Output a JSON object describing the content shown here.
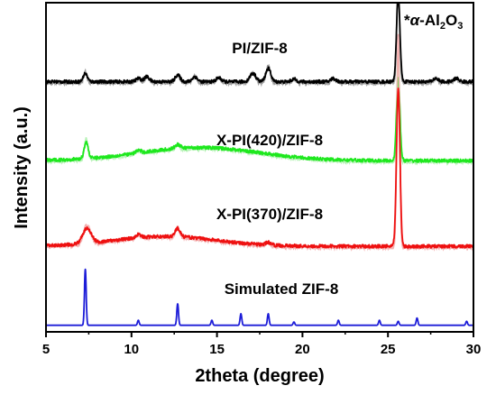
{
  "chart_data": {
    "type": "line",
    "xlabel": "2theta (degree)",
    "ylabel": "Intensity (a.u.)",
    "xlim": [
      5,
      30
    ],
    "x_ticks": [
      "5",
      "10",
      "15",
      "20",
      "25",
      "30"
    ],
    "y_ticks_shown": false,
    "grid": false,
    "legend": "none",
    "annotations": [
      {
        "text": "*α-Al2O3",
        "near_x": 25.6,
        "note_parts": {
          "prefix": "*",
          "greek": "α",
          "formula": "-Al",
          "sub1": "2",
          "mid": "O",
          "sub2": "3"
        }
      }
    ],
    "series": [
      {
        "name": "PI/ZIF-8",
        "color": "#000000",
        "shadow_color": "#9a9a9a",
        "baseline": 0.76,
        "peaks": [
          {
            "x": 7.3,
            "h": 0.025,
            "w": 0.12
          },
          {
            "x": 10.4,
            "h": 0.01,
            "w": 0.15
          },
          {
            "x": 10.9,
            "h": 0.015,
            "w": 0.15
          },
          {
            "x": 12.7,
            "h": 0.02,
            "w": 0.15
          },
          {
            "x": 13.7,
            "h": 0.015,
            "w": 0.15
          },
          {
            "x": 15.1,
            "h": 0.012,
            "w": 0.15
          },
          {
            "x": 17.1,
            "h": 0.025,
            "w": 0.18
          },
          {
            "x": 18.0,
            "h": 0.04,
            "w": 0.15
          },
          {
            "x": 19.5,
            "h": 0.008,
            "w": 0.15
          },
          {
            "x": 21.8,
            "h": 0.01,
            "w": 0.15
          },
          {
            "x": 25.6,
            "h": 0.26,
            "w": 0.1
          },
          {
            "x": 27.8,
            "h": 0.01,
            "w": 0.15
          },
          {
            "x": 29.0,
            "h": 0.01,
            "w": 0.15
          }
        ]
      },
      {
        "name": "X-PI(420)/ZIF-8",
        "color": "#1ee81e",
        "shadow_color": "#b6f2b6",
        "baseline": 0.52,
        "hump": {
          "x": 14.0,
          "h": 0.04,
          "w": 3.5
        },
        "peaks": [
          {
            "x": 7.35,
            "h": 0.05,
            "w": 0.12
          },
          {
            "x": 10.4,
            "h": 0.008,
            "w": 0.15
          },
          {
            "x": 12.7,
            "h": 0.012,
            "w": 0.15
          },
          {
            "x": 25.6,
            "h": 0.25,
            "w": 0.1
          }
        ]
      },
      {
        "name": "X-PI(370)/ZIF-8",
        "color": "#ee1010",
        "shadow_color": "#f4b0b0",
        "baseline": 0.26,
        "hump": {
          "x": 12.0,
          "h": 0.03,
          "w": 3.0
        },
        "peaks": [
          {
            "x": 7.4,
            "h": 0.045,
            "w": 0.25
          },
          {
            "x": 10.4,
            "h": 0.01,
            "w": 0.15
          },
          {
            "x": 12.7,
            "h": 0.025,
            "w": 0.15
          },
          {
            "x": 18.0,
            "h": 0.008,
            "w": 0.15
          },
          {
            "x": 25.6,
            "h": 0.48,
            "w": 0.1
          }
        ]
      },
      {
        "name": "Simulated ZIF-8",
        "color": "#1c1cd8",
        "baseline": 0.02,
        "peaks": [
          {
            "x": 7.3,
            "h": 0.17,
            "w": 0.05
          },
          {
            "x": 10.4,
            "h": 0.015,
            "w": 0.05
          },
          {
            "x": 12.7,
            "h": 0.065,
            "w": 0.05
          },
          {
            "x": 14.7,
            "h": 0.015,
            "w": 0.05
          },
          {
            "x": 16.4,
            "h": 0.035,
            "w": 0.05
          },
          {
            "x": 18.0,
            "h": 0.035,
            "w": 0.05
          },
          {
            "x": 19.5,
            "h": 0.01,
            "w": 0.05
          },
          {
            "x": 22.1,
            "h": 0.015,
            "w": 0.05
          },
          {
            "x": 24.5,
            "h": 0.015,
            "w": 0.05
          },
          {
            "x": 25.6,
            "h": 0.012,
            "w": 0.05
          },
          {
            "x": 26.7,
            "h": 0.022,
            "w": 0.05
          },
          {
            "x": 29.6,
            "h": 0.012,
            "w": 0.05
          }
        ]
      }
    ]
  }
}
